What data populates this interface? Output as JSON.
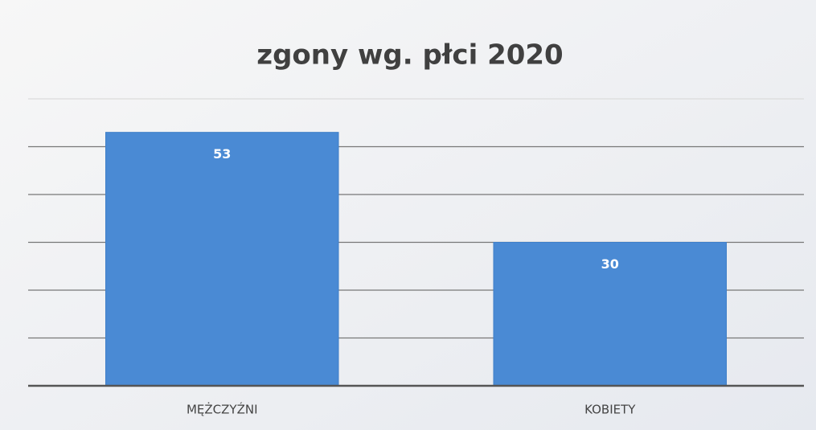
{
  "chart_data": {
    "type": "bar",
    "title": "zgony wg. płci 2020",
    "categories": [
      "MĘŻCZYŹNI",
      "KOBIETY"
    ],
    "values": [
      53,
      30
    ],
    "color": "#4a8ad4",
    "ylim": [
      0,
      60
    ],
    "yticks": [
      0,
      10,
      20,
      30,
      40,
      50,
      60
    ],
    "grid": true
  }
}
